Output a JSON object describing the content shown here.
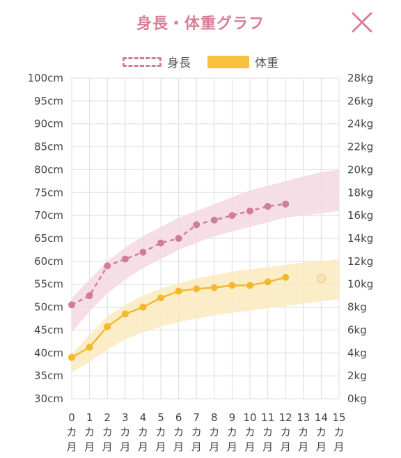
{
  "header": {
    "title": "身長・体重グラフ",
    "close_icon": "close-x-icon"
  },
  "legend": {
    "height_label": "身長",
    "weight_label": "体重"
  },
  "colors": {
    "height": "#cf7e99",
    "height_band": "#f5d8e2",
    "weight": "#f2b92f",
    "weight_band": "#fbeac0",
    "title": "#d67f97"
  },
  "chart_data": {
    "type": "line",
    "x_categories": [
      "0カ月",
      "1カ月",
      "2カ月",
      "3カ月",
      "4カ月",
      "5カ月",
      "6カ月",
      "7カ月",
      "8カ月",
      "9カ月",
      "10カ月",
      "11カ月",
      "12カ月",
      "13カ月",
      "14カ月",
      "15カ月"
    ],
    "x_tick_numbers": [
      "0",
      "1",
      "2",
      "3",
      "4",
      "5",
      "6",
      "7",
      "8",
      "9",
      "10",
      "11",
      "12",
      "13",
      "14",
      "15"
    ],
    "x_tick_unit_1": "カ",
    "x_tick_unit_2": "月",
    "left_axis": {
      "unit": "cm",
      "ylim": [
        30,
        100
      ],
      "ticks": [
        "30cm",
        "35cm",
        "40cm",
        "45cm",
        "50cm",
        "55cm",
        "60cm",
        "65cm",
        "70cm",
        "75cm",
        "80cm",
        "85cm",
        "90cm",
        "95cm",
        "100cm"
      ]
    },
    "right_axis": {
      "unit": "kg",
      "ylim": [
        0,
        28
      ],
      "ticks": [
        "0kg",
        "2kg",
        "4kg",
        "6kg",
        "8kg",
        "10kg",
        "12kg",
        "14kg",
        "16kg",
        "18kg",
        "20kg",
        "22kg",
        "24kg",
        "26kg",
        "28kg"
      ]
    },
    "grid": true,
    "series": [
      {
        "name": "身長",
        "axis": "left",
        "style": "dashed",
        "x": [
          0,
          1,
          2,
          3,
          4,
          5,
          6,
          7,
          8,
          9,
          10,
          11,
          12
        ],
        "values": [
          50.5,
          52.5,
          59,
          60.5,
          62,
          64,
          65,
          68,
          69,
          70,
          71,
          72,
          72.5
        ],
        "band_x": [
          0,
          1,
          2,
          3,
          4,
          5,
          6,
          7,
          8,
          9,
          10,
          11,
          12,
          13,
          14,
          15
        ],
        "band_low": [
          44.5,
          49,
          53,
          56,
          58.5,
          60.5,
          62.5,
          64,
          65.5,
          66.5,
          67.5,
          68.5,
          69.5,
          70,
          70.5,
          71
        ],
        "band_high": [
          52,
          56,
          60,
          63,
          65.5,
          67.5,
          69.5,
          71,
          72.5,
          74,
          75.5,
          76.5,
          77.5,
          78.5,
          79.5,
          80
        ]
      },
      {
        "name": "体重",
        "axis": "right",
        "style": "solid",
        "x": [
          0,
          1,
          2,
          3,
          4,
          5,
          6,
          7,
          8,
          9,
          10,
          11,
          12
        ],
        "values": [
          3.6,
          4.5,
          6.3,
          7.4,
          8,
          8.8,
          9.4,
          9.6,
          9.7,
          9.9,
          9.9,
          10.2,
          10.6
        ],
        "band_x": [
          0,
          1,
          2,
          3,
          4,
          5,
          6,
          7,
          8,
          9,
          10,
          11,
          12,
          13,
          14,
          15
        ],
        "band_low": [
          2.3,
          3.2,
          4.3,
          5.2,
          5.8,
          6.3,
          6.7,
          7,
          7.3,
          7.5,
          7.7,
          7.9,
          8.1,
          8.3,
          8.5,
          8.7
        ],
        "band_high": [
          3.9,
          5.6,
          7.2,
          8.2,
          9,
          9.6,
          10.1,
          10.5,
          10.8,
          11.1,
          11.3,
          11.5,
          11.7,
          11.9,
          12,
          12.2
        ],
        "extra_point": {
          "x": 14,
          "value": 10.5
        }
      }
    ]
  }
}
